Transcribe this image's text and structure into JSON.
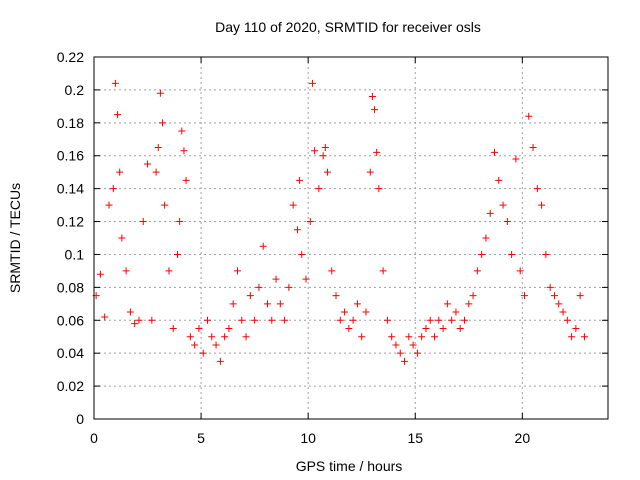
{
  "chart_data": {
    "type": "scatter",
    "title": "Day 110 of 2020, SRMTID for receiver osls",
    "xlabel": "GPS time / hours",
    "ylabel": "SRMTID / TECUs",
    "xlim": [
      0,
      24
    ],
    "ylim": [
      0,
      0.22
    ],
    "xticks": [
      "0",
      "5",
      "10",
      "15",
      "20"
    ],
    "yticks": [
      "0",
      "0.02",
      "0.04",
      "0.06",
      "0.08",
      "0.1",
      "0.12",
      "0.14",
      "0.16",
      "0.18",
      "0.2",
      "0.22"
    ],
    "grid": true,
    "marker": "+",
    "color": "#ff0000",
    "series": [
      {
        "x": [
          0.1,
          0.3,
          0.5,
          0.7,
          0.9,
          1.0,
          1.1,
          1.2,
          1.3,
          1.5,
          1.7,
          1.9,
          2.1,
          2.3,
          2.5,
          2.7,
          2.9,
          3.0,
          3.1,
          3.2,
          3.3,
          3.5,
          3.7,
          3.9,
          4.0,
          4.1,
          4.2,
          4.3,
          4.5,
          4.7,
          4.9,
          5.1,
          5.3,
          5.5,
          5.7,
          5.9,
          6.1,
          6.3,
          6.5,
          6.7,
          6.9,
          7.1,
          7.3,
          7.5,
          7.7,
          7.9,
          8.1,
          8.3,
          8.5,
          8.7,
          8.9,
          9.1,
          9.3,
          9.5,
          9.6,
          9.7,
          9.9,
          10.1,
          10.2,
          10.3,
          10.5,
          10.7,
          10.8,
          10.9,
          11.1,
          11.3,
          11.5,
          11.7,
          11.9,
          12.1,
          12.3,
          12.5,
          12.7,
          12.9,
          13.0,
          13.1,
          13.2,
          13.3,
          13.5,
          13.7,
          13.9,
          14.1,
          14.3,
          14.5,
          14.7,
          14.9,
          15.1,
          15.3,
          15.5,
          15.7,
          15.9,
          16.1,
          16.3,
          16.5,
          16.7,
          16.9,
          17.1,
          17.3,
          17.5,
          17.7,
          17.9,
          18.1,
          18.3,
          18.5,
          18.7,
          18.9,
          19.1,
          19.3,
          19.5,
          19.7,
          19.9,
          20.1,
          20.3,
          20.5,
          20.7,
          20.9,
          21.1,
          21.3,
          21.5,
          21.7,
          21.9,
          22.1,
          22.3,
          22.5,
          22.7,
          22.9
        ],
        "y": [
          0.075,
          0.088,
          0.062,
          0.13,
          0.14,
          0.204,
          0.185,
          0.15,
          0.11,
          0.09,
          0.065,
          0.058,
          0.06,
          0.12,
          0.155,
          0.06,
          0.15,
          0.165,
          0.198,
          0.18,
          0.13,
          0.09,
          0.055,
          0.1,
          0.12,
          0.175,
          0.163,
          0.145,
          0.05,
          0.045,
          0.055,
          0.04,
          0.06,
          0.05,
          0.045,
          0.035,
          0.05,
          0.055,
          0.07,
          0.09,
          0.06,
          0.05,
          0.075,
          0.06,
          0.08,
          0.105,
          0.07,
          0.06,
          0.085,
          0.07,
          0.06,
          0.08,
          0.13,
          0.115,
          0.145,
          0.1,
          0.085,
          0.12,
          0.204,
          0.163,
          0.14,
          0.16,
          0.165,
          0.15,
          0.09,
          0.075,
          0.06,
          0.065,
          0.055,
          0.06,
          0.07,
          0.05,
          0.065,
          0.15,
          0.196,
          0.188,
          0.162,
          0.14,
          0.09,
          0.06,
          0.05,
          0.045,
          0.04,
          0.035,
          0.05,
          0.045,
          0.04,
          0.05,
          0.055,
          0.06,
          0.05,
          0.06,
          0.055,
          0.07,
          0.06,
          0.065,
          0.055,
          0.06,
          0.07,
          0.075,
          0.09,
          0.1,
          0.11,
          0.125,
          0.162,
          0.145,
          0.13,
          0.12,
          0.1,
          0.158,
          0.09,
          0.075,
          0.184,
          0.165,
          0.14,
          0.13,
          0.1,
          0.08,
          0.075,
          0.07,
          0.065,
          0.06,
          0.05,
          0.055,
          0.075,
          0.05
        ]
      }
    ]
  }
}
